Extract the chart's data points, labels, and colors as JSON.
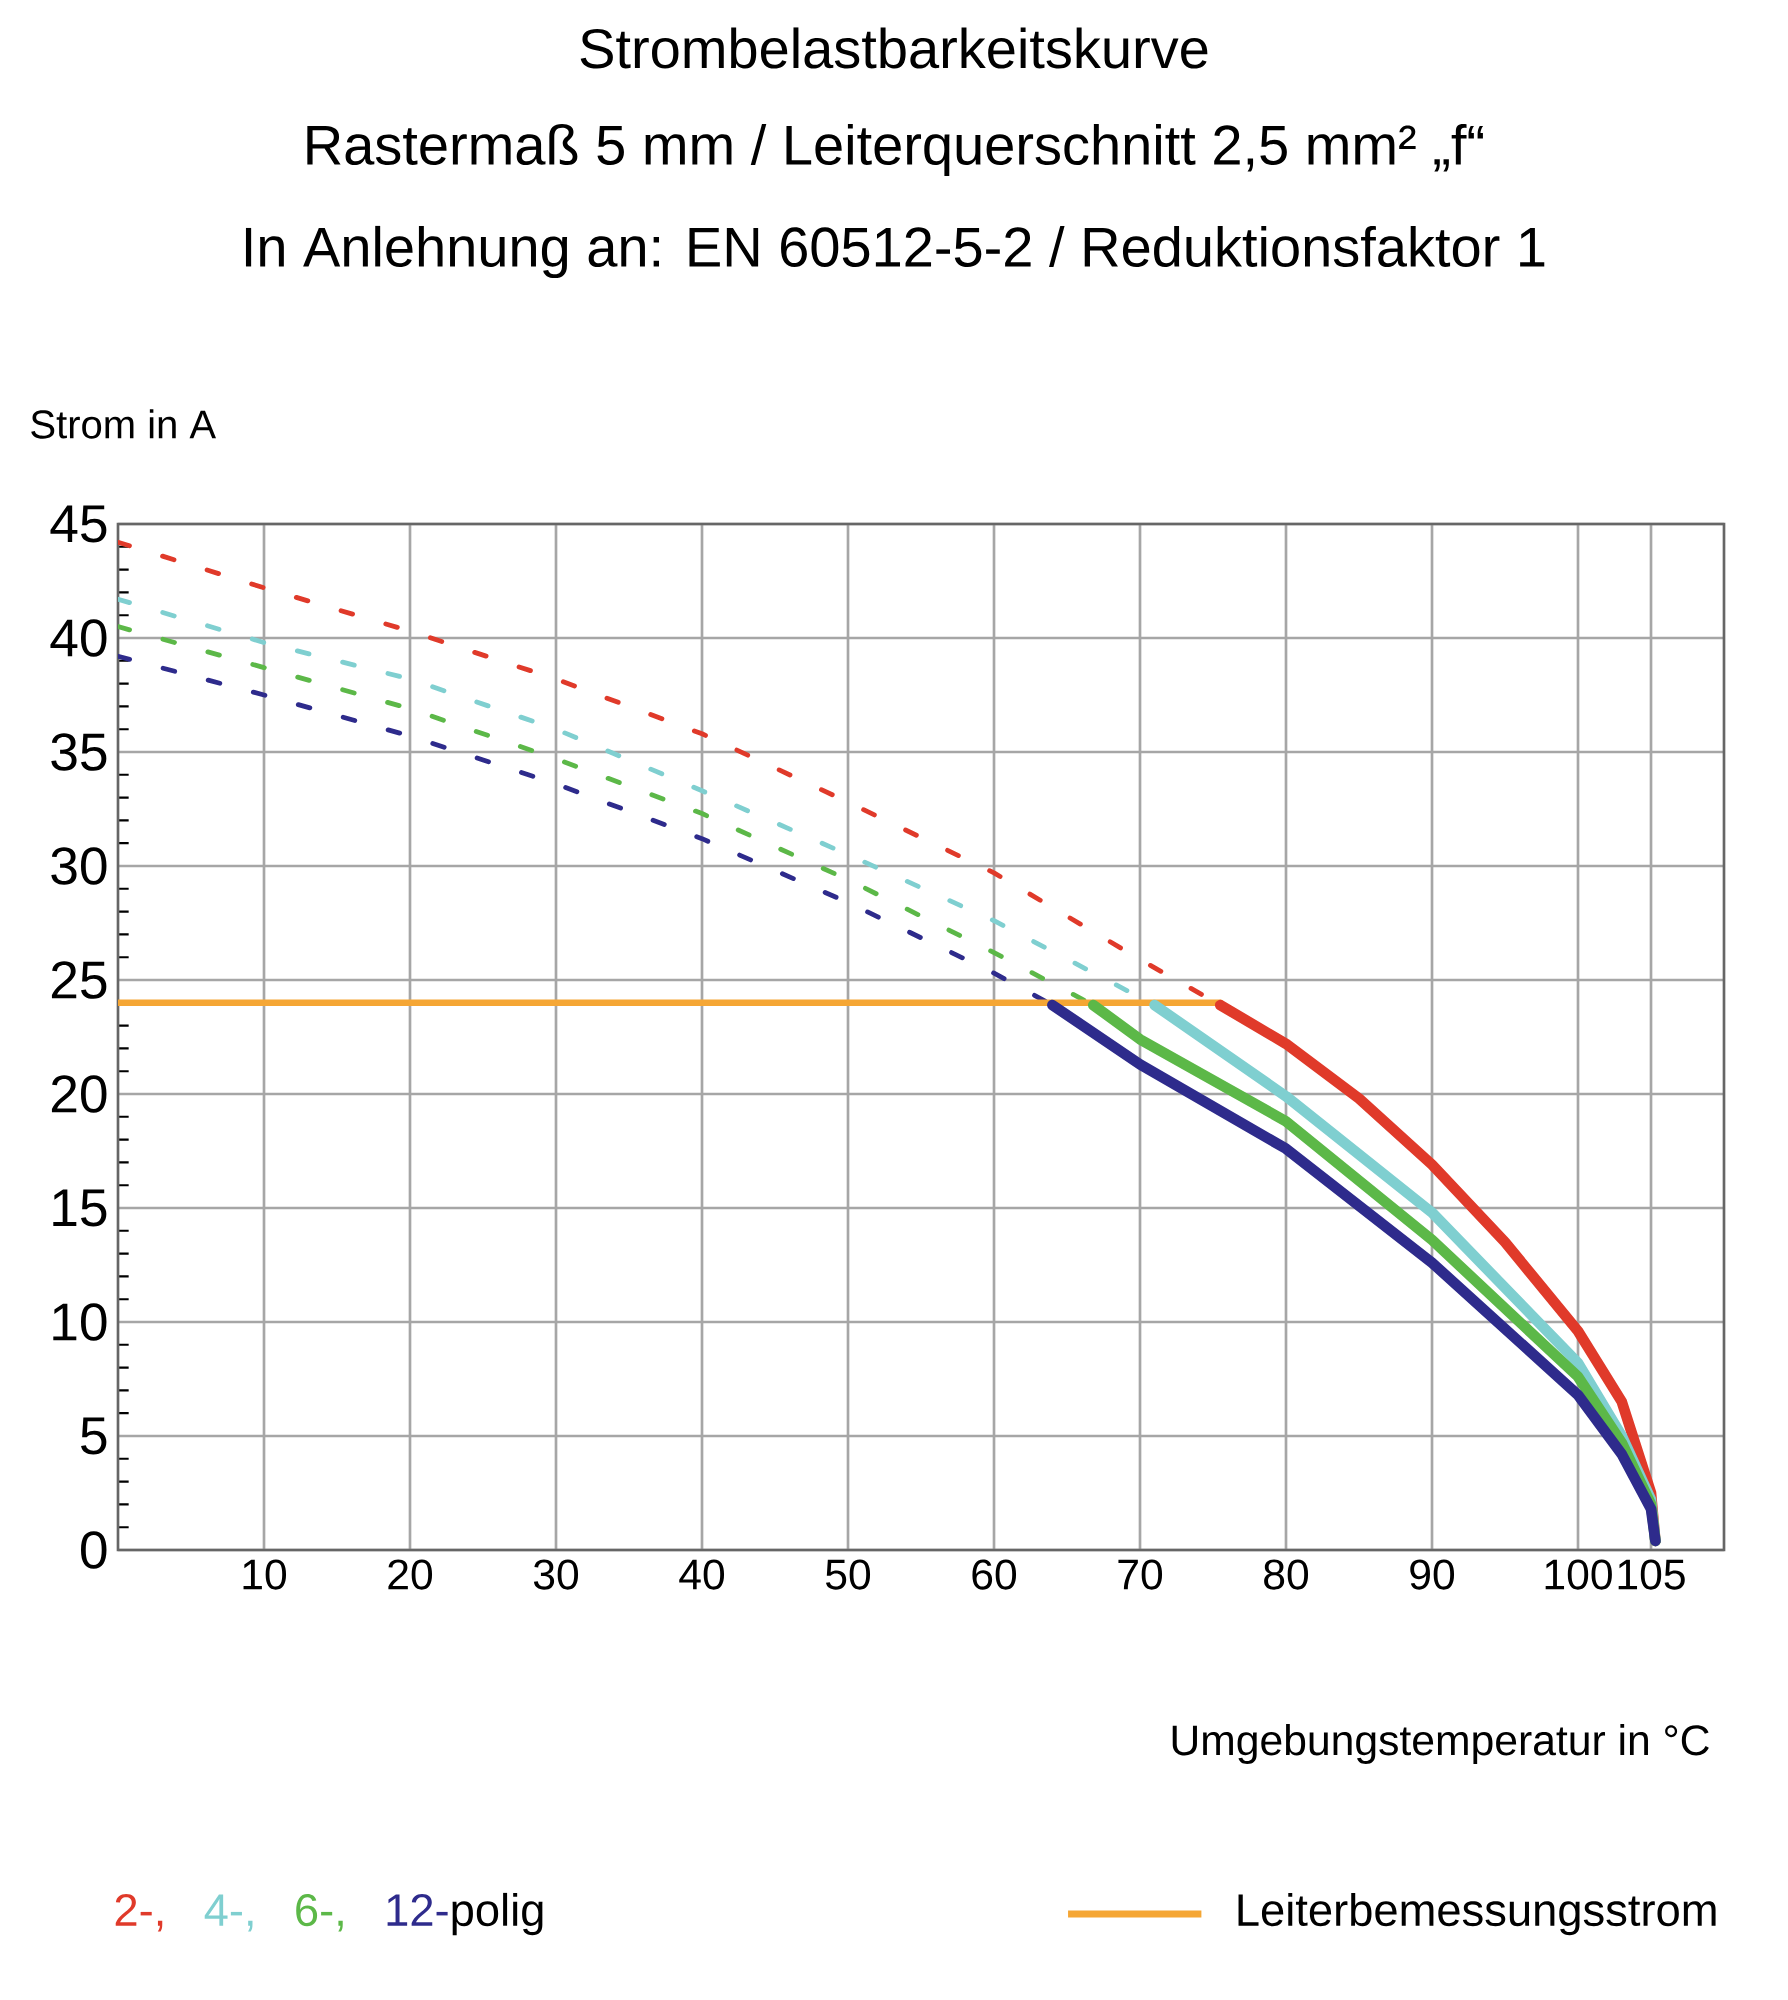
{
  "chart_data": {
    "type": "line",
    "title": "Strombelastbarkeitskurve",
    "subtitle": "Rastermaß 5 mm / Leiterquerschnitt 2,5 mm² „f“",
    "annotations": [
      "In Anlehnung an: EN 60512-5-2 / Reduktionsfaktor 1",
      "polig"
    ],
    "xlabel": "Umgebungstemperatur in °C",
    "ylabel": "Strom in A",
    "xlim": [
      0,
      110
    ],
    "ylim": [
      0,
      45
    ],
    "xticks": [
      10,
      20,
      30,
      40,
      50,
      60,
      70,
      80,
      90,
      100,
      105
    ],
    "yticks": [
      0,
      5,
      10,
      15,
      20,
      25,
      30,
      35,
      40,
      45
    ],
    "grid": true,
    "legend": "bottom",
    "marker": "none",
    "series": [
      {
        "color": "#e03a2a",
        "line_style": "dashed",
        "x": [
          0,
          10,
          20,
          30,
          40,
          50,
          60,
          70,
          75.5
        ],
        "values": [
          44.2,
          42.2,
          40.3,
          38.2,
          35.8,
          32.8,
          29.7,
          25.9,
          23.9
        ]
      },
      {
        "color": "#7fcfd0",
        "line_style": "dashed",
        "x": [
          0,
          10,
          20,
          30,
          40,
          50,
          60,
          71
        ],
        "values": [
          41.7,
          39.8,
          38.2,
          36,
          33.3,
          30.5,
          27.6,
          23.9
        ]
      },
      {
        "color": "#5cb848",
        "line_style": "dashed",
        "x": [
          0,
          10,
          20,
          30,
          40,
          50,
          60,
          66.8
        ],
        "values": [
          40.5,
          38.7,
          36.9,
          34.7,
          32.3,
          29.4,
          26.2,
          23.9
        ]
      },
      {
        "color": "#2e2b8c",
        "line_style": "dashed",
        "x": [
          0,
          10,
          20,
          30,
          40,
          50,
          60,
          64
        ],
        "values": [
          39.2,
          37.5,
          35.7,
          33.6,
          31.2,
          28.4,
          25.3,
          23.9
        ]
      },
      {
        "name": "Leiterbemessungsstrom",
        "color": "#f5a634",
        "line_style": "solid",
        "x": [
          0,
          75.5
        ],
        "values": [
          24,
          24
        ]
      },
      {
        "name": "2-,",
        "color": "#e03a2a",
        "line_style": "solid",
        "x": [
          75.5,
          80,
          85,
          90,
          95,
          100,
          103,
          105,
          105.3
        ],
        "values": [
          23.9,
          22.2,
          19.8,
          16.9,
          13.5,
          9.6,
          6.5,
          2.5,
          0.4
        ]
      },
      {
        "name": "4-,",
        "color": "#7fcfd0",
        "line_style": "solid",
        "x": [
          71,
          80,
          90,
          100,
          103,
          105,
          105.3
        ],
        "values": [
          23.9,
          19.9,
          14.8,
          8.2,
          5,
          2.2,
          0.4
        ]
      },
      {
        "name": "6-,",
        "color": "#5cb848",
        "line_style": "solid",
        "x": [
          66.8,
          70,
          80,
          90,
          100,
          103,
          105,
          105.3
        ],
        "values": [
          23.9,
          22.4,
          18.8,
          13.6,
          7.6,
          4.7,
          2,
          0.4
        ]
      },
      {
        "name": "12-",
        "color": "#2e2b8c",
        "line_style": "solid",
        "x": [
          64,
          70,
          80,
          90,
          100,
          103,
          105,
          105.3
        ],
        "values": [
          23.9,
          21.3,
          17.6,
          12.6,
          6.8,
          4.2,
          1.8,
          0.4
        ]
      }
    ]
  }
}
